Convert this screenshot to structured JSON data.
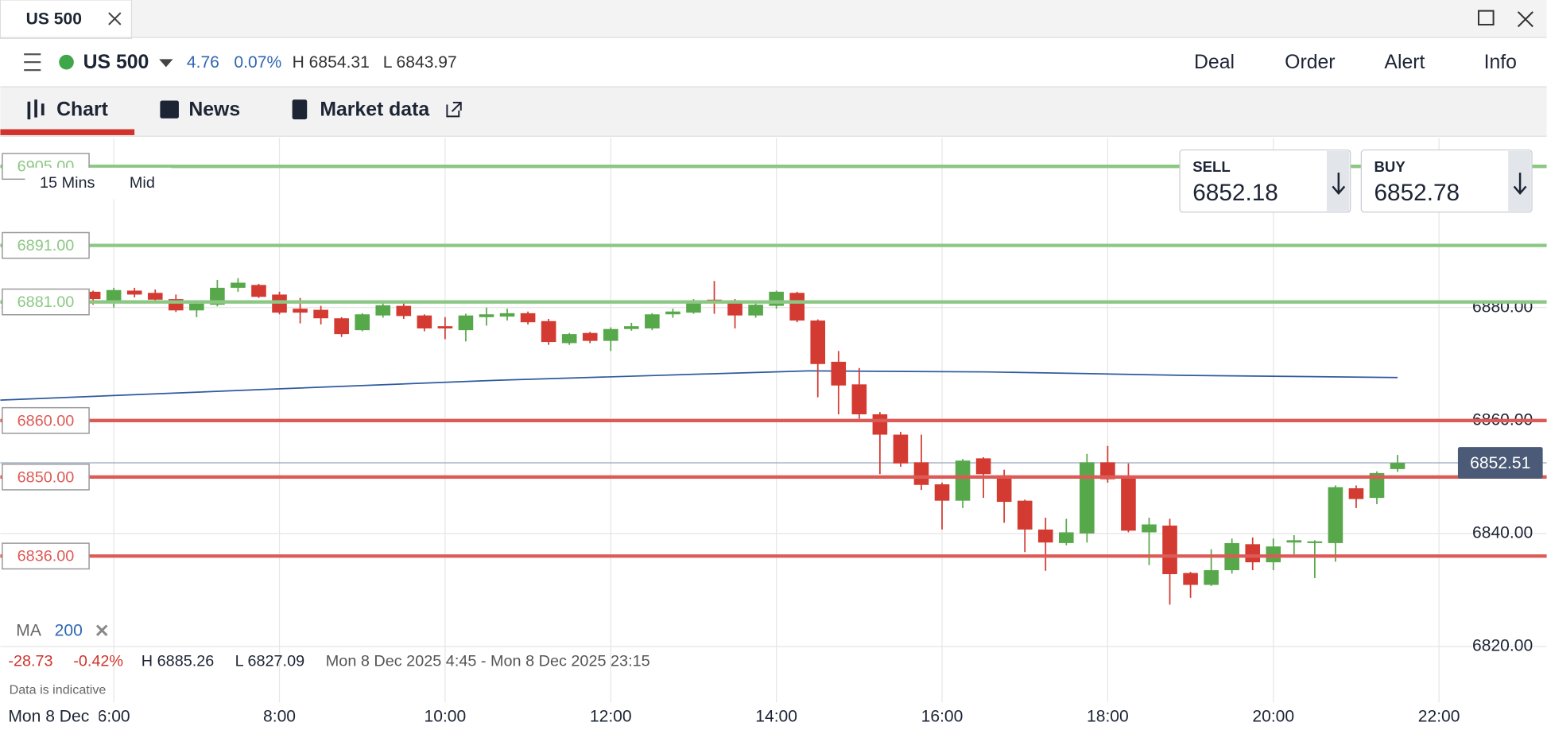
{
  "tab": {
    "title": "US 500"
  },
  "header": {
    "instrument": "US 500",
    "change": 4.76,
    "change_pct": "0.07%",
    "high": "H 6854.31",
    "low": "L 6843.97",
    "actions": [
      "Deal",
      "Order",
      "Alert",
      "Info"
    ]
  },
  "nav": [
    "Chart",
    "News",
    "Market data"
  ],
  "chart_data": {
    "type": "candlestick",
    "interval": "15 Mins",
    "price_type": "Mid",
    "sell": {
      "label": "SELL",
      "value": 6852.18
    },
    "buy": {
      "label": "BUY",
      "value": 6852.78
    },
    "x": [
      5.75,
      6,
      6.25,
      6.5,
      6.75,
      7,
      7.25,
      7.5,
      7.75,
      8,
      8.25,
      8.5,
      8.75,
      9,
      9.25,
      9.5,
      9.75,
      10,
      10.25,
      10.5,
      10.75,
      11,
      11.25,
      11.5,
      11.75,
      12,
      12.25,
      12.5,
      12.75,
      13,
      13.25,
      13.5,
      13.75,
      14,
      14.25,
      14.5,
      14.75,
      15,
      15.25,
      15.5,
      15.75,
      16,
      16.25,
      16.5,
      16.75,
      17,
      17.25,
      17.5,
      17.75,
      18,
      18.25,
      18.5,
      18.75,
      19,
      19.25,
      19.5,
      19.75,
      20,
      20.25,
      20.5,
      20.75,
      21,
      21.25,
      21.5
    ],
    "open": [
      6882.8,
      6881.0,
      6883.0,
      6882.6,
      6881.5,
      6879.5,
      6880.5,
      6883.5,
      6884.0,
      6882.3,
      6879.8,
      6879.6,
      6878.1,
      6876.0,
      6878.6,
      6880.3,
      6878.6,
      6876.7,
      6876.0,
      6878.3,
      6878.4,
      6879.0,
      6877.6,
      6873.7,
      6875.5,
      6874.1,
      6876.2,
      6876.3,
      6878.8,
      6879.1,
      6881.4,
      6881.2,
      6878.6,
      6880.3,
      6882.6,
      6877.7,
      6870.4,
      6866.4,
      6861.1,
      6857.5,
      6852.6,
      6848.7,
      6845.8,
      6853.3,
      6850.3,
      6845.8,
      6840.7,
      6838.3,
      6840.0,
      6852.6,
      6850.0,
      6840.2,
      6841.4,
      6833.0,
      6830.9,
      6833.5,
      6838.1,
      6834.9,
      6838.4,
      6838.3,
      6838.3,
      6848.0,
      6846.3,
      6851.4
    ],
    "high": [
      6883.0,
      6883.5,
      6883.5,
      6883.2,
      6882.3,
      6881.2,
      6884.9,
      6885.2,
      6884.2,
      6882.8,
      6881.7,
      6880.3,
      6878.3,
      6879.0,
      6881.0,
      6881.0,
      6878.8,
      6878.3,
      6878.9,
      6880.0,
      6879.8,
      6879.3,
      6878.0,
      6875.5,
      6875.7,
      6876.5,
      6877.3,
      6879.0,
      6879.8,
      6881.5,
      6884.7,
      6881.5,
      6881.0,
      6883.0,
      6882.8,
      6877.9,
      6872.3,
      6869.3,
      6861.5,
      6858.0,
      6857.5,
      6849.0,
      6853.2,
      6853.5,
      6851.3,
      6846.0,
      6842.8,
      6842.6,
      6854.1,
      6855.5,
      6852.4,
      6842.8,
      6842.6,
      6833.2,
      6837.2,
      6839.1,
      6839.3,
      6839.1,
      6839.7,
      6838.8,
      6848.5,
      6848.5,
      6851.0,
      6853.9
    ],
    "low": [
      6880.5,
      6880.0,
      6881.8,
      6880.8,
      6879.2,
      6878.3,
      6880.2,
      6882.8,
      6881.7,
      6878.8,
      6877.2,
      6877.0,
      6874.8,
      6875.8,
      6878.2,
      6878.0,
      6875.8,
      6874.4,
      6874.0,
      6876.8,
      6877.7,
      6877.0,
      6873.4,
      6873.4,
      6873.7,
      6872.3,
      6875.9,
      6876.0,
      6878.2,
      6878.9,
      6878.9,
      6876.3,
      6878.2,
      6879.8,
      6877.4,
      6864.1,
      6861.1,
      6860.3,
      6850.5,
      6851.8,
      6847.7,
      6840.7,
      6844.5,
      6846.3,
      6841.9,
      6836.7,
      6833.4,
      6837.9,
      6838.4,
      6849.0,
      6840.2,
      6834.4,
      6827.4,
      6828.6,
      6830.7,
      6832.9,
      6833.5,
      6833.5,
      6836.3,
      6832.1,
      6835.0,
      6844.5,
      6845.2,
      6850.9
    ],
    "close": [
      6881.5,
      6883.1,
      6882.3,
      6881.4,
      6879.5,
      6880.7,
      6883.5,
      6884.4,
      6881.9,
      6879.1,
      6879.1,
      6878.1,
      6875.3,
      6878.8,
      6880.4,
      6878.5,
      6876.3,
      6876.3,
      6878.6,
      6878.8,
      6879.0,
      6877.4,
      6873.9,
      6875.3,
      6874.1,
      6876.2,
      6876.7,
      6878.8,
      6879.3,
      6881.2,
      6880.9,
      6878.6,
      6880.5,
      6882.8,
      6877.7,
      6870.0,
      6866.2,
      6861.1,
      6857.5,
      6852.4,
      6848.6,
      6845.8,
      6852.9,
      6850.5,
      6845.6,
      6840.7,
      6838.4,
      6840.2,
      6852.6,
      6849.6,
      6840.5,
      6841.6,
      6832.8,
      6830.9,
      6833.5,
      6838.3,
      6834.9,
      6837.7,
      6838.8,
      6838.6,
      6848.2,
      6846.1,
      6850.7,
      6852.5
    ],
    "up_color": "#57a84a",
    "down_color": "#d33a31",
    "xlim": [
      4.63,
      23.3
    ],
    "xticks": [
      {
        "value": 6,
        "label": "6:00"
      },
      {
        "value": 8,
        "label": "8:00"
      },
      {
        "value": 10,
        "label": "10:00"
      },
      {
        "value": 12,
        "label": "12:00"
      },
      {
        "value": 14,
        "label": "14:00"
      },
      {
        "value": 16,
        "label": "16:00"
      },
      {
        "value": 18,
        "label": "18:00"
      },
      {
        "value": 20,
        "label": "20:00"
      },
      {
        "value": 22,
        "label": "22:00"
      }
    ],
    "ylim": [
      6805.2,
      6910
    ],
    "yticks": [
      {
        "value": 6820,
        "label": "6820.00"
      },
      {
        "value": 6840,
        "label": "6840.00"
      },
      {
        "value": 6860,
        "label": "6860.00"
      },
      {
        "value": 6880,
        "label": "6880.00"
      }
    ],
    "grid": true,
    "last_price": 6852.51,
    "levels": [
      {
        "value": 6905,
        "label": "6905.00",
        "color": "#8cc884"
      },
      {
        "value": 6891,
        "label": "6891.00",
        "color": "#8cc884"
      },
      {
        "value": 6881,
        "label": "6881.00",
        "color": "#8cc884"
      },
      {
        "value": 6860,
        "label": "6860.00",
        "color": "#dd5b56"
      },
      {
        "value": 6850,
        "label": "6850.00",
        "color": "#dd5b56"
      },
      {
        "value": 6836,
        "label": "6836.00",
        "color": "#dd5b56"
      }
    ],
    "ma": {
      "name": "MA",
      "period": 200,
      "color": "#2f5a9e",
      "x": [
        4.63,
        7.8,
        10.58,
        14.39,
        16.54,
        17.73,
        18.92,
        21.5
      ],
      "values": [
        6863.6,
        6865.5,
        6867.1,
        6868.8,
        6868.6,
        6868.3,
        6868.0,
        6867.6
      ]
    },
    "summary": {
      "change": -28.73,
      "change_pct": "-0.42%",
      "high": "H 6885.26",
      "low": "L 6827.09",
      "range": "Mon 8 Dec 2025 4:45 - Mon 8 Dec 2025 23:15"
    },
    "note": "Data is indicative",
    "date": "Mon 8 Dec"
  }
}
